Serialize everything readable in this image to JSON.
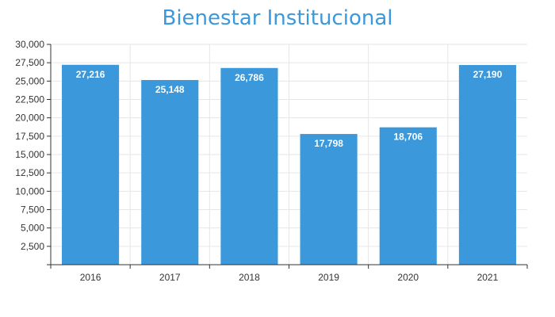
{
  "colors": {
    "bar": "#3a98db",
    "title": "#3a98db",
    "grid": "#e6e6e6",
    "axis": "#333333"
  },
  "chart_data": {
    "type": "bar",
    "title": "Bienestar Institucional",
    "xlabel": "",
    "ylabel": "",
    "categories": [
      "2016",
      "2017",
      "2018",
      "2019",
      "2020",
      "2021"
    ],
    "values": [
      27216,
      25148,
      26786,
      17798,
      18706,
      27190
    ],
    "value_labels": [
      "27,216",
      "25,148",
      "26,786",
      "17,798",
      "18,706",
      "27,190"
    ],
    "ylim": [
      0,
      30000
    ],
    "yticks": [
      2500,
      5000,
      7500,
      10000,
      12500,
      15000,
      17500,
      20000,
      22500,
      25000,
      27500,
      30000
    ],
    "ytick_labels": [
      "2,500",
      "5,000",
      "7,500",
      "10,000",
      "12,500",
      "15,000",
      "17,500",
      "20,000",
      "22,500",
      "25,000",
      "27,500",
      "30,000"
    ],
    "grid": true,
    "legend": "none"
  }
}
